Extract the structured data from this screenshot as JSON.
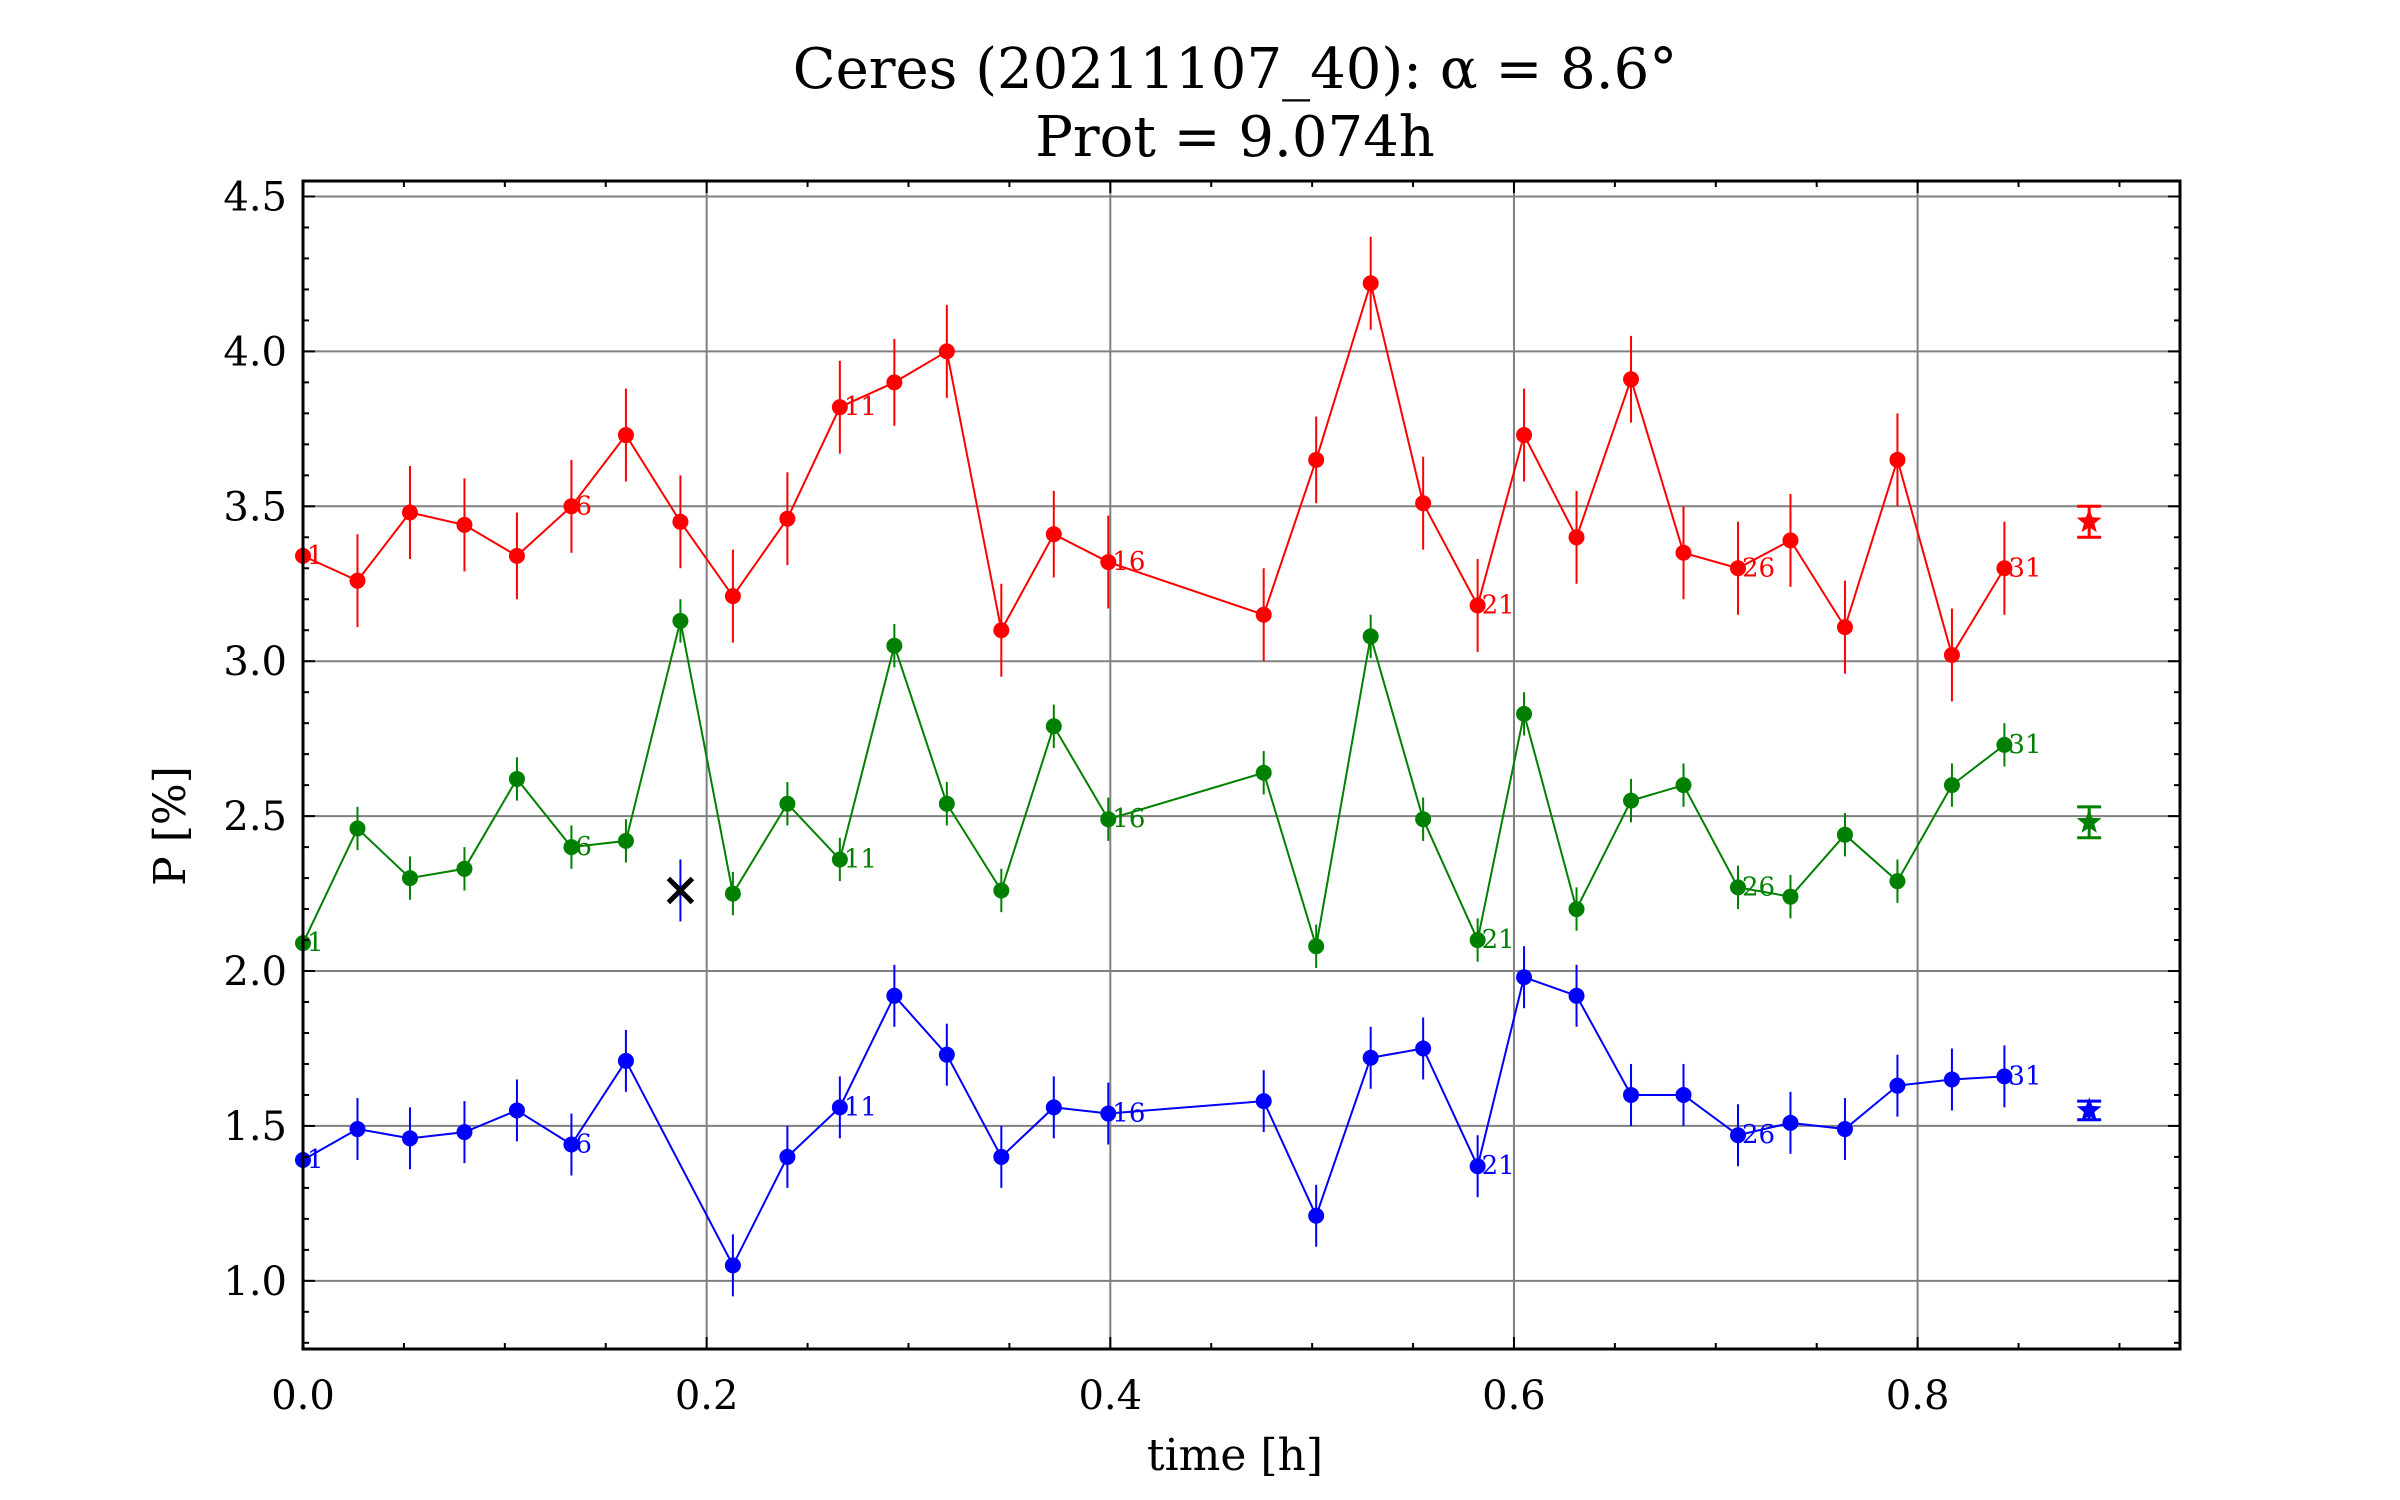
{
  "chart_data": {
    "type": "scatter",
    "title": "Ceres (20211107_40): α = 8.6°",
    "subtitle": "Prot = 9.074h",
    "xlabel": "time [h]",
    "ylabel": "P [%]",
    "xlim": [
      0.0,
      0.93
    ],
    "ylim": [
      0.78,
      4.55
    ],
    "xticks": [
      "0.0",
      "0.2",
      "0.4",
      "0.6",
      "0.8"
    ],
    "yticks": [
      "1.0",
      "1.5",
      "2.0",
      "2.5",
      "3.0",
      "3.5",
      "4.0",
      "4.5"
    ],
    "grid": true,
    "x": [
      0.0,
      0.027,
      0.053,
      0.08,
      0.106,
      0.133,
      0.16,
      0.187,
      0.213,
      0.24,
      0.266,
      0.293,
      0.319,
      0.346,
      0.372,
      0.399,
      0.476,
      0.502,
      0.529,
      0.555,
      0.582,
      0.605,
      0.631,
      0.658,
      0.684,
      0.711,
      0.737,
      0.764,
      0.79,
      0.817,
      0.843
    ],
    "point_labels": [
      {
        "index": 0,
        "text": "1"
      },
      {
        "index": 5,
        "text": "6"
      },
      {
        "index": 10,
        "text": "11"
      },
      {
        "index": 15,
        "text": "16"
      },
      {
        "index": 20,
        "text": "21"
      },
      {
        "index": 25,
        "text": "26"
      },
      {
        "index": 30,
        "text": "31"
      }
    ],
    "series": [
      {
        "color": "#ff0000",
        "values": [
          3.34,
          3.26,
          3.48,
          3.44,
          3.34,
          3.5,
          3.73,
          3.45,
          3.21,
          3.46,
          3.82,
          3.9,
          4.0,
          3.1,
          3.41,
          3.32,
          3.15,
          3.65,
          4.22,
          3.51,
          3.18,
          3.73,
          3.4,
          3.91,
          3.35,
          3.3,
          3.39,
          3.11,
          3.65,
          3.02,
          3.3
        ],
        "errors": [
          0.12,
          0.15,
          0.15,
          0.15,
          0.14,
          0.15,
          0.15,
          0.15,
          0.15,
          0.15,
          0.15,
          0.14,
          0.15,
          0.15,
          0.14,
          0.15,
          0.15,
          0.14,
          0.15,
          0.15,
          0.15,
          0.15,
          0.15,
          0.14,
          0.15,
          0.15,
          0.15,
          0.15,
          0.15,
          0.15,
          0.15
        ],
        "mean": {
          "x": 0.885,
          "y": 3.45,
          "err": 0.05
        }
      },
      {
        "color": "#008000",
        "values": [
          2.09,
          2.46,
          2.3,
          2.33,
          2.62,
          2.4,
          2.42,
          3.13,
          2.25,
          2.54,
          2.36,
          3.05,
          2.54,
          2.26,
          2.79,
          2.49,
          2.64,
          2.08,
          3.08,
          2.49,
          2.1,
          2.83,
          2.2,
          2.55,
          2.6,
          2.27,
          2.24,
          2.44,
          2.29,
          2.6,
          2.73
        ],
        "errors": [
          0.07,
          0.07,
          0.07,
          0.07,
          0.07,
          0.07,
          0.07,
          0.07,
          0.07,
          0.07,
          0.07,
          0.07,
          0.07,
          0.07,
          0.07,
          0.07,
          0.07,
          0.07,
          0.07,
          0.07,
          0.07,
          0.07,
          0.07,
          0.07,
          0.07,
          0.07,
          0.07,
          0.07,
          0.07,
          0.07,
          0.07
        ],
        "mean": {
          "x": 0.885,
          "y": 2.48,
          "err": 0.05
        }
      },
      {
        "color": "#0000ff",
        "values": [
          1.39,
          1.49,
          1.46,
          1.48,
          1.55,
          1.44,
          1.71,
          null,
          1.05,
          1.4,
          1.56,
          1.92,
          1.73,
          1.4,
          1.56,
          1.54,
          1.58,
          1.21,
          1.72,
          1.75,
          1.37,
          1.98,
          1.92,
          1.6,
          1.6,
          1.47,
          1.51,
          1.49,
          1.63,
          1.65,
          1.66
        ],
        "errors": [
          0.1,
          0.1,
          0.1,
          0.1,
          0.1,
          0.1,
          0.1,
          0.1,
          0.1,
          0.1,
          0.1,
          0.1,
          0.1,
          0.1,
          0.1,
          0.1,
          0.1,
          0.1,
          0.1,
          0.1,
          0.1,
          0.1,
          0.1,
          0.1,
          0.1,
          0.1,
          0.1,
          0.1,
          0.1,
          0.1,
          0.1
        ],
        "mean": {
          "x": 0.885,
          "y": 1.55,
          "err": 0.03
        }
      }
    ],
    "rejected_points": [
      {
        "x": 0.187,
        "y": 2.26,
        "err": 0.1,
        "color": "#000000"
      }
    ]
  }
}
